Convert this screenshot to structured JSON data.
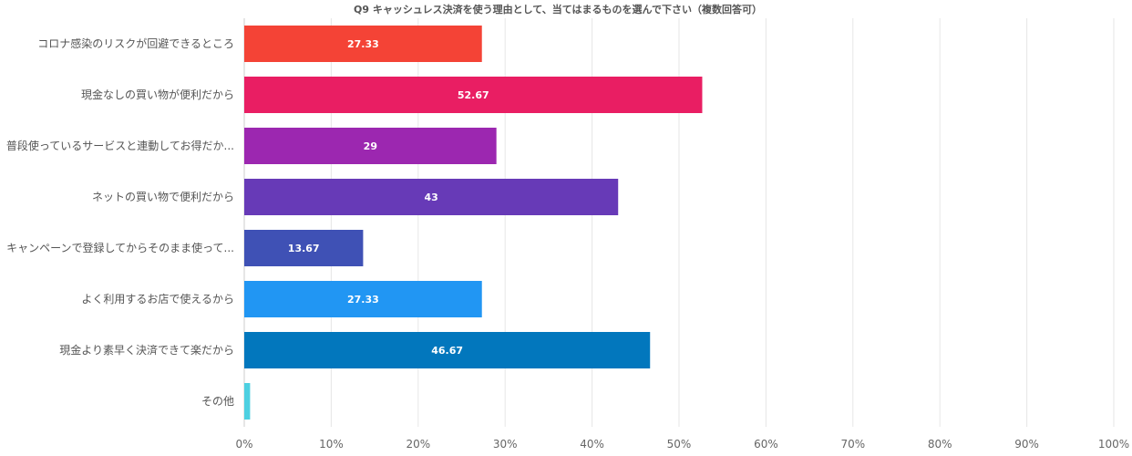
{
  "chart_data": {
    "type": "bar",
    "orientation": "horizontal",
    "title": "Q9 キャッシュレス決済を使う理由として、当てはまるものを選んで下さい（複数回答可）",
    "categories": [
      "コロナ感染のリスクが回避できるところ",
      "現金なしの買い物が便利だから",
      "普段使っているサービスと連動してお得だか...",
      "ネットの買い物で便利だから",
      "キャンペーンで登録してからそのまま使って...",
      "よく利用するお店で使えるから",
      "現金より素早く決済できて楽だから",
      "その他"
    ],
    "values": [
      27.33,
      52.67,
      29,
      43,
      13.67,
      27.33,
      46.67,
      0.67
    ],
    "value_labels": [
      "27.33",
      "52.67",
      "29",
      "43",
      "13.67",
      "27.33",
      "46.67",
      ""
    ],
    "colors": [
      "#f44336",
      "#e91e63",
      "#9c27b0",
      "#673ab7",
      "#3f51b5",
      "#2196f3",
      "#0277bd",
      "#4dd0e1"
    ],
    "xlim": [
      0,
      100
    ],
    "x_ticks": [
      "0%",
      "10%",
      "20%",
      "30%",
      "40%",
      "50%",
      "60%",
      "70%",
      "80%",
      "90%",
      "100%"
    ],
    "x_tick_values": [
      0,
      10,
      20,
      30,
      40,
      50,
      60,
      70,
      80,
      90,
      100
    ],
    "xlabel": "",
    "ylabel": "",
    "grid": true,
    "legend": "none"
  }
}
